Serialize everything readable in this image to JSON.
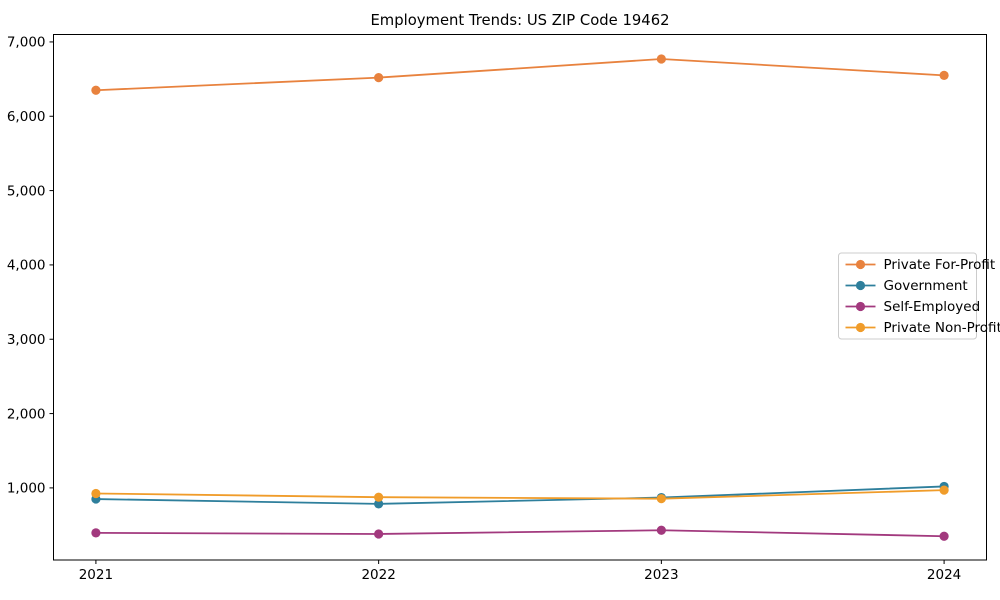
{
  "title": "Employment Trends: US ZIP Code 19462",
  "chart_data": {
    "type": "line",
    "title": "Employment Trends: US ZIP Code 19462",
    "xlabel": "",
    "ylabel": "",
    "x": [
      2021,
      2022,
      2023,
      2024
    ],
    "x_tick_labels": [
      "2021",
      "2022",
      "2023",
      "2024"
    ],
    "y_ticks": [
      1000,
      2000,
      3000,
      4000,
      5000,
      6000,
      7000
    ],
    "y_tick_labels": [
      "1,000",
      "2,000",
      "3,000",
      "4,000",
      "5,000",
      "6,000",
      "7,000"
    ],
    "xlim": [
      2020.85,
      2024.15
    ],
    "ylim": [
      30,
      7100
    ],
    "grid": false,
    "legend_position": "center right",
    "marker": "circle",
    "background": "#ffffff",
    "frame_color": "#000000",
    "legend_border_color": "#cccccc",
    "series": [
      {
        "name": "Private For-Profit",
        "color": "#e8823e",
        "values": [
          6350,
          6520,
          6770,
          6550
        ]
      },
      {
        "name": "Government",
        "color": "#2e7f9c",
        "values": [
          850,
          785,
          870,
          1020
        ]
      },
      {
        "name": "Self-Employed",
        "color": "#a2397e",
        "values": [
          395,
          380,
          430,
          350
        ]
      },
      {
        "name": "Private Non-Profit",
        "color": "#f09c2a",
        "values": [
          925,
          875,
          855,
          970
        ]
      }
    ]
  }
}
